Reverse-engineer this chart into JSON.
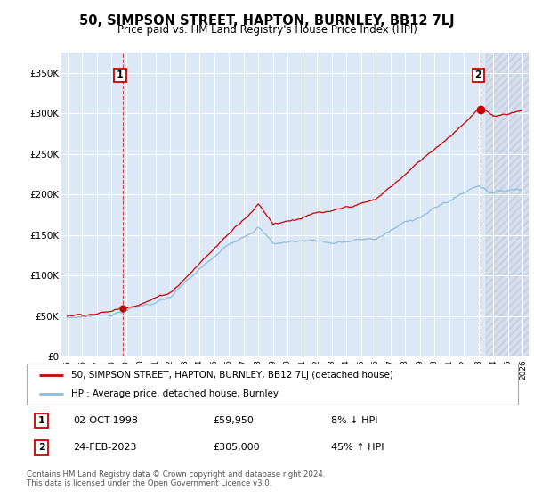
{
  "title": "50, SIMPSON STREET, HAPTON, BURNLEY, BB12 7LJ",
  "subtitle": "Price paid vs. HM Land Registry's House Price Index (HPI)",
  "sale1_date": 1998.75,
  "sale1_price": 59950,
  "sale2_date": 2023.12,
  "sale2_price": 305000,
  "hpi_color": "#8bbcdc",
  "sale_color": "#cc0000",
  "bg_color": "#dce8f5",
  "grid_color": "#ffffff",
  "legend_label_sale": "50, SIMPSON STREET, HAPTON, BURNLEY, BB12 7LJ (detached house)",
  "legend_label_hpi": "HPI: Average price, detached house, Burnley",
  "table_row1": [
    "1",
    "02-OCT-1998",
    "£59,950",
    "8% ↓ HPI"
  ],
  "table_row2": [
    "2",
    "24-FEB-2023",
    "£305,000",
    "45% ↑ HPI"
  ],
  "footnote": "Contains HM Land Registry data © Crown copyright and database right 2024.\nThis data is licensed under the Open Government Licence v3.0.",
  "ylim": [
    0,
    375000
  ],
  "xlim_start": 1994.6,
  "xlim_end": 2026.4
}
